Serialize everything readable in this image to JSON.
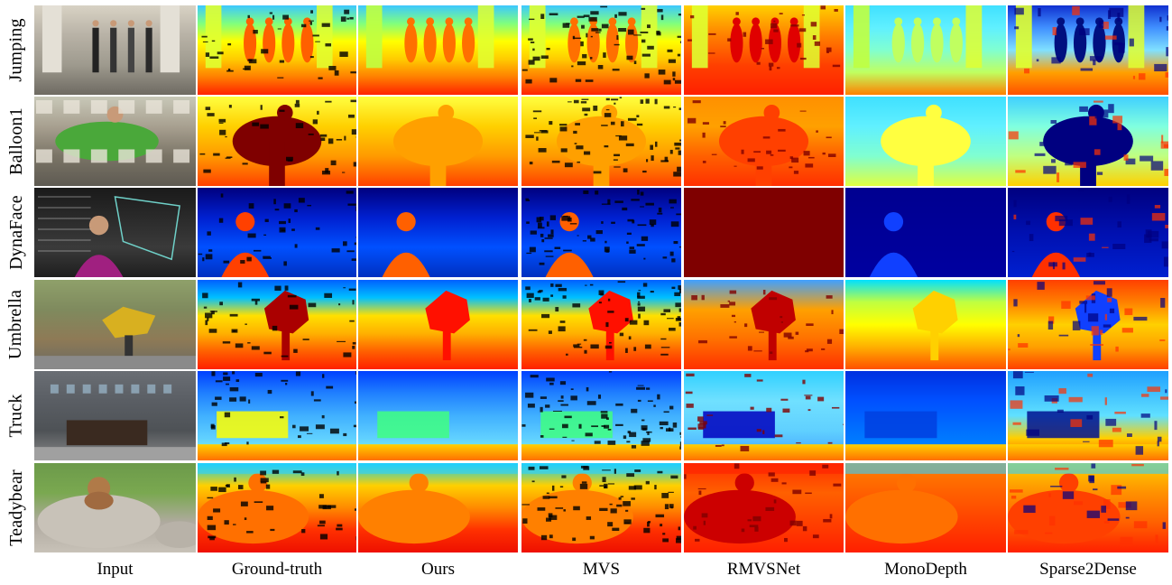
{
  "rows": [
    "Jumping",
    "Balloon1",
    "DynaFace",
    "Umbrella",
    "Truck",
    "Teadybear"
  ],
  "columns": [
    "Input",
    "Ground-truth",
    "Ours",
    "MVS",
    "RMVSNet",
    "MonoDepth",
    "Sparse2Dense"
  ],
  "colormap": {
    "name": "jet",
    "stops": [
      "#00007f",
      "#0000ff",
      "#007fff",
      "#00ffff",
      "#7fff7f",
      "#ffff00",
      "#ff7f00",
      "#ff0000",
      "#7f0000"
    ]
  },
  "backgrounds": {
    "input_tones": [
      "#b8b2a6",
      "#8a8a7e",
      "#2a2a2a",
      "#7f8a5e",
      "#5a5e64",
      "#6c9a4a"
    ]
  }
}
